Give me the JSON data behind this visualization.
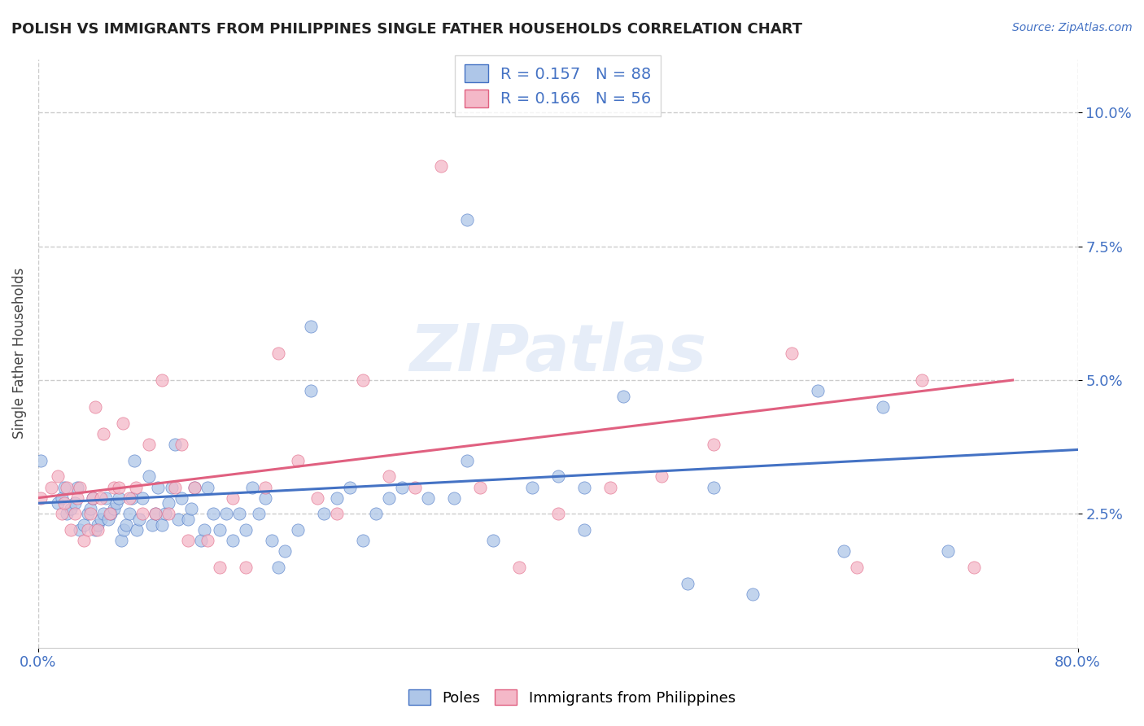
{
  "title": "POLISH VS IMMIGRANTS FROM PHILIPPINES SINGLE FATHER HOUSEHOLDS CORRELATION CHART",
  "source": "Source: ZipAtlas.com",
  "ylabel": "Single Father Households",
  "yticks": [
    "2.5%",
    "5.0%",
    "7.5%",
    "10.0%"
  ],
  "ytick_vals": [
    0.025,
    0.05,
    0.075,
    0.1
  ],
  "xlim": [
    0.0,
    0.8
  ],
  "ylim": [
    0.0,
    0.11
  ],
  "legend_label1": "R = 0.157   N = 88",
  "legend_label2": "R = 0.166   N = 56",
  "legend_color1": "#aec6e8",
  "legend_color2": "#f4b8c8",
  "scatter_color1": "#aec6e8",
  "scatter_color2": "#f4b8c8",
  "line_color1": "#4472c4",
  "line_color2": "#e06080",
  "edge_color2": "#e06080",
  "label1": "Poles",
  "label2": "Immigrants from Philippines",
  "watermark": "ZIPatlas",
  "background_color": "#ffffff",
  "grid_color": "#cccccc",
  "title_color": "#222222",
  "blue_x": [
    0.002,
    0.015,
    0.018,
    0.02,
    0.022,
    0.025,
    0.028,
    0.03,
    0.032,
    0.035,
    0.038,
    0.04,
    0.042,
    0.044,
    0.046,
    0.048,
    0.05,
    0.052,
    0.054,
    0.056,
    0.058,
    0.06,
    0.062,
    0.064,
    0.066,
    0.068,
    0.07,
    0.072,
    0.074,
    0.076,
    0.078,
    0.08,
    0.085,
    0.088,
    0.09,
    0.092,
    0.095,
    0.098,
    0.1,
    0.103,
    0.105,
    0.108,
    0.11,
    0.115,
    0.118,
    0.12,
    0.125,
    0.128,
    0.13,
    0.135,
    0.14,
    0.145,
    0.15,
    0.155,
    0.16,
    0.165,
    0.17,
    0.175,
    0.18,
    0.185,
    0.19,
    0.2,
    0.21,
    0.22,
    0.23,
    0.24,
    0.25,
    0.26,
    0.27,
    0.28,
    0.3,
    0.32,
    0.33,
    0.35,
    0.38,
    0.4,
    0.42,
    0.45,
    0.5,
    0.52,
    0.55,
    0.6,
    0.62,
    0.65,
    0.7,
    0.42,
    0.21,
    0.33
  ],
  "blue_y": [
    0.035,
    0.027,
    0.028,
    0.03,
    0.025,
    0.026,
    0.027,
    0.03,
    0.022,
    0.023,
    0.025,
    0.026,
    0.028,
    0.022,
    0.023,
    0.024,
    0.025,
    0.028,
    0.024,
    0.025,
    0.026,
    0.027,
    0.028,
    0.02,
    0.022,
    0.023,
    0.025,
    0.028,
    0.035,
    0.022,
    0.024,
    0.028,
    0.032,
    0.023,
    0.025,
    0.03,
    0.023,
    0.025,
    0.027,
    0.03,
    0.038,
    0.024,
    0.028,
    0.024,
    0.026,
    0.03,
    0.02,
    0.022,
    0.03,
    0.025,
    0.022,
    0.025,
    0.02,
    0.025,
    0.022,
    0.03,
    0.025,
    0.028,
    0.02,
    0.015,
    0.018,
    0.022,
    0.048,
    0.025,
    0.028,
    0.03,
    0.02,
    0.025,
    0.028,
    0.03,
    0.028,
    0.028,
    0.08,
    0.02,
    0.03,
    0.032,
    0.03,
    0.047,
    0.012,
    0.03,
    0.01,
    0.048,
    0.018,
    0.045,
    0.018,
    0.022,
    0.06,
    0.035
  ],
  "pink_x": [
    0.002,
    0.01,
    0.015,
    0.018,
    0.02,
    0.022,
    0.025,
    0.028,
    0.03,
    0.032,
    0.035,
    0.038,
    0.04,
    0.042,
    0.044,
    0.046,
    0.048,
    0.05,
    0.055,
    0.058,
    0.062,
    0.065,
    0.07,
    0.075,
    0.08,
    0.085,
    0.09,
    0.095,
    0.1,
    0.105,
    0.11,
    0.115,
    0.12,
    0.13,
    0.14,
    0.15,
    0.16,
    0.175,
    0.185,
    0.2,
    0.215,
    0.23,
    0.25,
    0.27,
    0.29,
    0.31,
    0.34,
    0.37,
    0.4,
    0.44,
    0.48,
    0.52,
    0.58,
    0.63,
    0.68,
    0.72
  ],
  "pink_y": [
    0.028,
    0.03,
    0.032,
    0.025,
    0.027,
    0.03,
    0.022,
    0.025,
    0.028,
    0.03,
    0.02,
    0.022,
    0.025,
    0.028,
    0.045,
    0.022,
    0.028,
    0.04,
    0.025,
    0.03,
    0.03,
    0.042,
    0.028,
    0.03,
    0.025,
    0.038,
    0.025,
    0.05,
    0.025,
    0.03,
    0.038,
    0.02,
    0.03,
    0.02,
    0.015,
    0.028,
    0.015,
    0.03,
    0.055,
    0.035,
    0.028,
    0.025,
    0.05,
    0.032,
    0.03,
    0.09,
    0.03,
    0.015,
    0.025,
    0.03,
    0.032,
    0.038,
    0.055,
    0.015,
    0.05,
    0.015
  ],
  "blue_line_x": [
    0.0,
    0.8
  ],
  "blue_line_y": [
    0.027,
    0.037
  ],
  "pink_line_x": [
    0.0,
    0.75
  ],
  "pink_line_y": [
    0.028,
    0.05
  ]
}
